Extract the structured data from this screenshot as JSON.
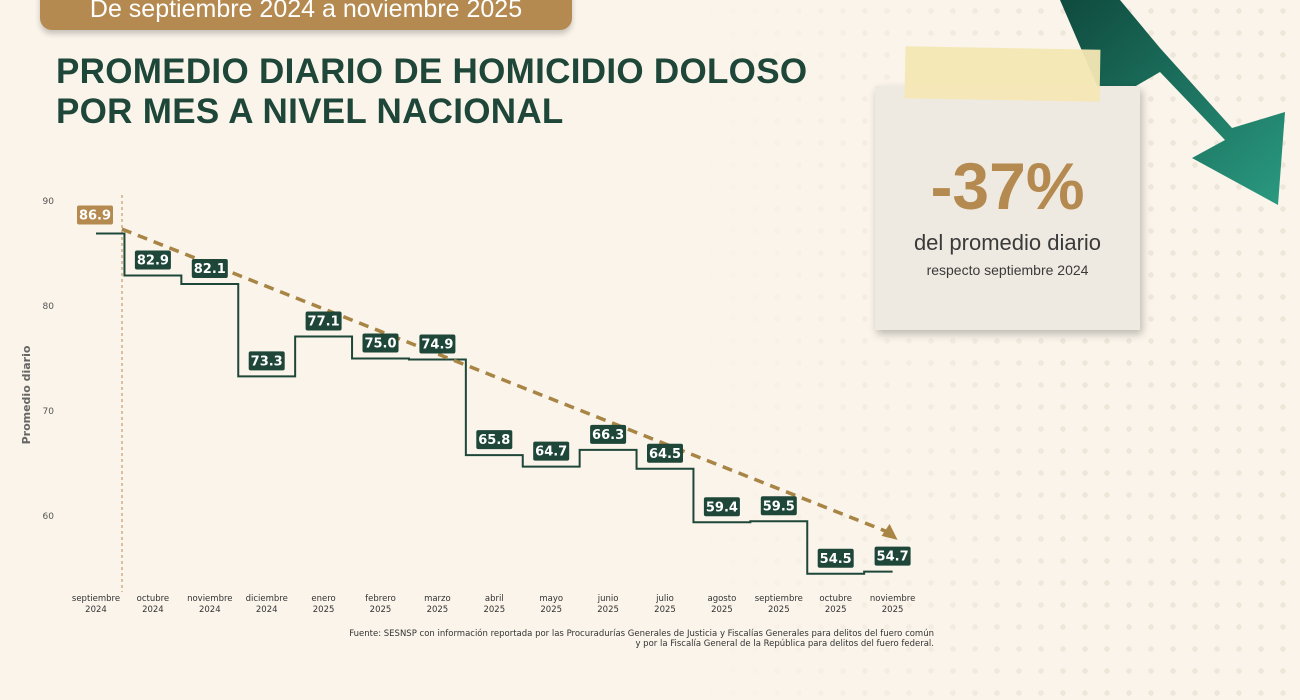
{
  "banner": "De septiembre 2024 a noviembre 2025",
  "title_line1": "PROMEDIO DIARIO DE HOMICIDIO DOLOSO",
  "title_line2": "POR MES A NIVEL NACIONAL",
  "callout": {
    "value": "-37%",
    "line1": "del promedio diario",
    "line2": "respecto septiembre 2024"
  },
  "source_line1": "Fuente: SESNSP con información reportada por las Procuradurías Generales de Justicia y Fiscalías Generales para delitos del fuero común",
  "source_line2": "y por la Fiscalía General de la República para delitos del fuero federal.",
  "colors": {
    "green": "#1e4639",
    "gold": "#b58a50",
    "arrow": "#1f7a68"
  },
  "chart_data": {
    "type": "line",
    "style": "step",
    "ylabel": "Promedio diario",
    "ylim": [
      53,
      90
    ],
    "yticks": [
      60,
      70,
      80,
      90
    ],
    "categories": [
      [
        "septiembre",
        "2024"
      ],
      [
        "octubre",
        "2024"
      ],
      [
        "noviembre",
        "2024"
      ],
      [
        "diciembre",
        "2024"
      ],
      [
        "enero",
        "2025"
      ],
      [
        "febrero",
        "2025"
      ],
      [
        "marzo",
        "2025"
      ],
      [
        "abril",
        "2025"
      ],
      [
        "mayo",
        "2025"
      ],
      [
        "junio",
        "2025"
      ],
      [
        "julio",
        "2025"
      ],
      [
        "agosto",
        "2025"
      ],
      [
        "septiembre",
        "2025"
      ],
      [
        "octubre",
        "2025"
      ],
      [
        "noviembre",
        "2025"
      ]
    ],
    "values": [
      86.9,
      82.9,
      82.1,
      73.3,
      77.1,
      75.0,
      74.9,
      65.8,
      64.7,
      66.3,
      64.5,
      59.4,
      59.5,
      54.5,
      54.7
    ],
    "labels": [
      "86.9",
      "82.9",
      "82.1",
      "73.3",
      "77.1",
      "75.0",
      "74.9",
      "65.8",
      "64.7",
      "66.3",
      "64.5",
      "59.4",
      "59.5",
      "54.5",
      "54.7"
    ],
    "trend": {
      "start": 88.3,
      "end": 58.3
    }
  }
}
